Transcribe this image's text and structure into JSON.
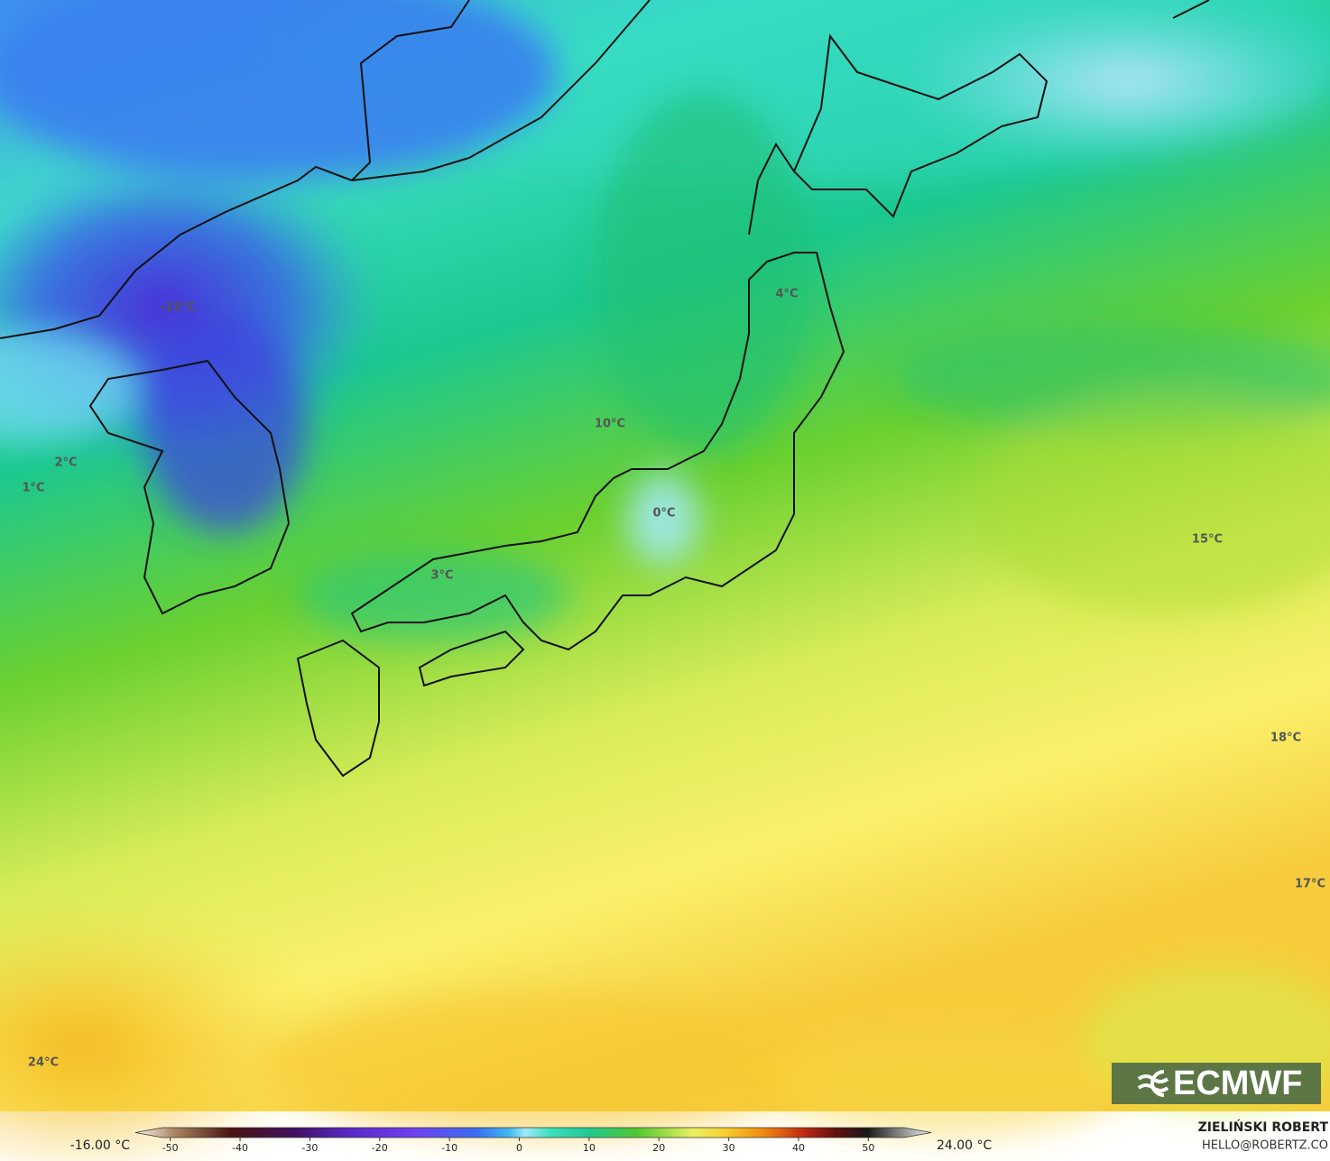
{
  "map": {
    "labels": [
      "-15°C",
      "4°C",
      "10°C",
      "2°C",
      "1°C",
      "0°C",
      "3°C",
      "15°C",
      "18°C",
      "17°C",
      "24°C"
    ],
    "legend": {
      "min_label": "-16.00 °C",
      "max_label": "24.00 °C",
      "lim": [
        -55,
        59
      ],
      "ticks": [
        -50,
        -40,
        -30,
        -20,
        -10,
        0,
        10,
        20,
        30,
        40,
        50
      ]
    }
  },
  "logo": "ECMWF",
  "credits": {
    "author": "ZIELIŃSKI ROBERT",
    "email": "HELLO@ROBERTZ.CO"
  }
}
